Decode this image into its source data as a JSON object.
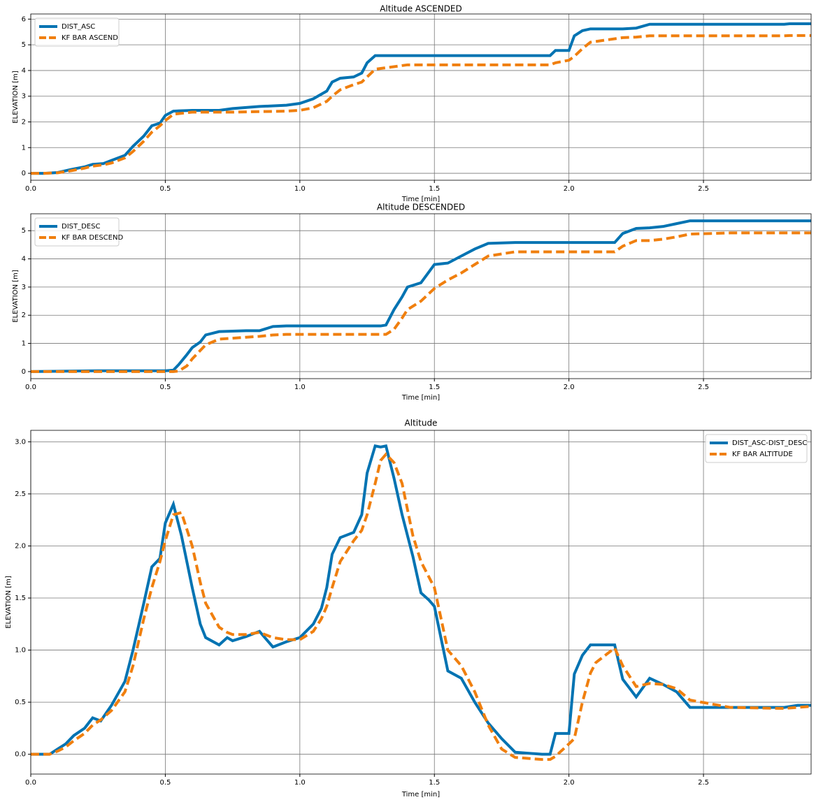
{
  "chart_data": [
    {
      "type": "line",
      "title": "Altitude ASCENDED",
      "x_label": "Time [min]",
      "y_label": "ELEVATION [m]",
      "x": [
        0,
        0.05,
        0.1,
        0.15,
        0.2,
        0.23,
        0.27,
        0.3,
        0.35,
        0.38,
        0.42,
        0.45,
        0.48,
        0.5,
        0.53,
        0.6,
        0.7,
        0.75,
        0.85,
        0.95,
        1.0,
        1.05,
        1.1,
        1.12,
        1.15,
        1.2,
        1.23,
        1.25,
        1.28,
        1.4,
        1.6,
        1.8,
        1.93,
        1.95,
        2.0,
        2.02,
        2.05,
        2.08,
        2.2,
        2.25,
        2.3,
        2.5,
        2.8,
        2.82,
        2.9
      ],
      "series": [
        {
          "name": "DIST_ASC",
          "color": "#0173b2",
          "linestyle": "solid",
          "values": [
            0,
            0,
            0.03,
            0.15,
            0.25,
            0.35,
            0.38,
            0.5,
            0.7,
            1.05,
            1.45,
            1.85,
            1.95,
            2.25,
            2.42,
            2.45,
            2.45,
            2.52,
            2.6,
            2.65,
            2.72,
            2.9,
            3.2,
            3.55,
            3.7,
            3.75,
            3.9,
            4.3,
            4.58,
            4.58,
            4.58,
            4.58,
            4.58,
            4.78,
            4.78,
            5.35,
            5.55,
            5.62,
            5.62,
            5.65,
            5.8,
            5.8,
            5.8,
            5.82,
            5.82
          ]
        },
        {
          "name": "KF BAR ASCEND",
          "color": "#f07f0e",
          "linestyle": "dashed",
          "values": [
            0,
            0,
            0.02,
            0.1,
            0.2,
            0.28,
            0.33,
            0.4,
            0.6,
            0.85,
            1.25,
            1.6,
            1.85,
            2.05,
            2.3,
            2.38,
            2.38,
            2.38,
            2.4,
            2.42,
            2.45,
            2.55,
            2.8,
            3.0,
            3.25,
            3.45,
            3.55,
            3.75,
            4.05,
            4.22,
            4.22,
            4.22,
            4.22,
            4.3,
            4.4,
            4.55,
            4.85,
            5.1,
            5.28,
            5.3,
            5.35,
            5.35,
            5.35,
            5.36,
            5.36
          ]
        }
      ],
      "xlim": [
        0,
        2.9
      ],
      "ylim": [
        -0.27,
        6.2
      ],
      "xticks": [
        {
          "value": 0,
          "label": "0.0"
        },
        0.5,
        {
          "value": 1,
          "label": "1.0"
        },
        1.5,
        {
          "value": 2,
          "label": "2.0"
        },
        2.5
      ],
      "yticks": [
        0,
        1,
        2,
        3,
        4,
        5,
        6
      ],
      "grid": true,
      "legend_loc": "upper-left"
    },
    {
      "type": "line",
      "title": "Altitude DESCENDED",
      "x_label": "Time [min]",
      "y_label": "ELEVATION [m]",
      "x": [
        0,
        0.25,
        0.5,
        0.53,
        0.55,
        0.58,
        0.6,
        0.63,
        0.65,
        0.7,
        0.8,
        0.85,
        0.9,
        0.95,
        1.2,
        1.3,
        1.32,
        1.35,
        1.38,
        1.4,
        1.45,
        1.5,
        1.55,
        1.6,
        1.65,
        1.7,
        1.8,
        2.0,
        2.17,
        2.2,
        2.25,
        2.3,
        2.35,
        2.4,
        2.45,
        2.6,
        2.9
      ],
      "series": [
        {
          "name": "DIST_DESC",
          "color": "#0173b2",
          "linestyle": "solid",
          "values": [
            0,
            0.03,
            0.03,
            0.05,
            0.25,
            0.6,
            0.85,
            1.05,
            1.3,
            1.42,
            1.45,
            1.45,
            1.6,
            1.62,
            1.62,
            1.62,
            1.65,
            2.2,
            2.65,
            3.0,
            3.15,
            3.8,
            3.85,
            4.1,
            4.35,
            4.55,
            4.58,
            4.58,
            4.58,
            4.9,
            5.08,
            5.1,
            5.15,
            5.25,
            5.35,
            5.35,
            5.35
          ]
        },
        {
          "name": "KF BAR DESCEND",
          "color": "#f07f0e",
          "linestyle": "dashed",
          "values": [
            0,
            0,
            0,
            0,
            0.02,
            0.2,
            0.45,
            0.75,
            0.95,
            1.15,
            1.22,
            1.25,
            1.3,
            1.32,
            1.32,
            1.32,
            1.32,
            1.5,
            1.9,
            2.2,
            2.5,
            2.95,
            3.25,
            3.5,
            3.8,
            4.1,
            4.25,
            4.25,
            4.25,
            4.45,
            4.65,
            4.65,
            4.7,
            4.78,
            4.88,
            4.92,
            4.92
          ]
        }
      ],
      "xlim": [
        0,
        2.9
      ],
      "ylim": [
        -0.25,
        5.6
      ],
      "xticks": [
        {
          "value": 0,
          "label": "0.0"
        },
        0.5,
        {
          "value": 1,
          "label": "1.0"
        },
        1.5,
        {
          "value": 2,
          "label": "2.0"
        },
        2.5
      ],
      "yticks": [
        0,
        1,
        2,
        3,
        4,
        5
      ],
      "grid": true,
      "legend_loc": "upper-left"
    },
    {
      "type": "line",
      "title": "Altitude",
      "x_label": "Time [min]",
      "y_label": "ELEVATION [m]",
      "x": [
        0,
        0.07,
        0.1,
        0.13,
        0.16,
        0.2,
        0.23,
        0.26,
        0.3,
        0.35,
        0.38,
        0.42,
        0.45,
        0.48,
        0.5,
        0.53,
        0.56,
        0.6,
        0.63,
        0.65,
        0.7,
        0.73,
        0.75,
        0.8,
        0.85,
        0.9,
        0.95,
        1.0,
        1.05,
        1.08,
        1.1,
        1.12,
        1.15,
        1.2,
        1.23,
        1.25,
        1.28,
        1.3,
        1.32,
        1.35,
        1.38,
        1.42,
        1.45,
        1.48,
        1.5,
        1.55,
        1.6,
        1.65,
        1.7,
        1.75,
        1.8,
        1.9,
        1.93,
        1.95,
        2.0,
        2.02,
        2.05,
        2.08,
        2.1,
        2.17,
        2.2,
        2.25,
        2.3,
        2.35,
        2.4,
        2.45,
        2.6,
        2.8,
        2.85,
        2.9
      ],
      "series": [
        {
          "name": "DIST_ASC-DIST_DESC",
          "color": "#0173b2",
          "linestyle": "solid",
          "values": [
            0,
            0,
            0.05,
            0.1,
            0.18,
            0.25,
            0.35,
            0.32,
            0.47,
            0.7,
            1.0,
            1.45,
            1.8,
            1.88,
            2.22,
            2.4,
            2.1,
            1.6,
            1.25,
            1.12,
            1.05,
            1.12,
            1.09,
            1.13,
            1.18,
            1.03,
            1.08,
            1.12,
            1.25,
            1.4,
            1.6,
            1.92,
            2.08,
            2.13,
            2.3,
            2.7,
            2.96,
            2.95,
            2.96,
            2.65,
            2.3,
            1.9,
            1.55,
            1.48,
            1.42,
            0.8,
            0.73,
            0.5,
            0.3,
            0.15,
            0.02,
            0,
            0,
            0.2,
            0.2,
            0.77,
            0.95,
            1.05,
            1.05,
            1.05,
            0.72,
            0.55,
            0.73,
            0.67,
            0.6,
            0.45,
            0.45,
            0.45,
            0.47,
            0.47
          ]
        },
        {
          "name": "KF BAR ALTITUDE",
          "color": "#f07f0e",
          "linestyle": "dashed",
          "values": [
            0,
            0,
            0.03,
            0.07,
            0.13,
            0.2,
            0.28,
            0.33,
            0.42,
            0.6,
            0.85,
            1.3,
            1.6,
            1.85,
            2.05,
            2.3,
            2.32,
            2.0,
            1.65,
            1.45,
            1.22,
            1.17,
            1.15,
            1.15,
            1.17,
            1.12,
            1.1,
            1.1,
            1.18,
            1.3,
            1.42,
            1.6,
            1.85,
            2.05,
            2.15,
            2.3,
            2.6,
            2.82,
            2.88,
            2.8,
            2.6,
            2.1,
            1.85,
            1.7,
            1.6,
            1.0,
            0.85,
            0.6,
            0.28,
            0.05,
            -0.03,
            -0.05,
            -0.05,
            -0.02,
            0.1,
            0.15,
            0.5,
            0.78,
            0.88,
            1.02,
            0.85,
            0.65,
            0.68,
            0.67,
            0.63,
            0.52,
            0.45,
            0.44,
            0.45,
            0.46
          ]
        }
      ],
      "xlim": [
        0,
        2.9
      ],
      "ylim": [
        -0.19,
        3.11
      ],
      "xticks": [
        {
          "value": 0,
          "label": "0.0"
        },
        0.5,
        {
          "value": 1,
          "label": "1.0"
        },
        1.5,
        {
          "value": 2,
          "label": "2.0"
        },
        2.5
      ],
      "yticks": [
        {
          "value": 0,
          "label": "0.0"
        },
        0.5,
        {
          "value": 1,
          "label": "1.0"
        },
        1.5,
        {
          "value": 2,
          "label": "2.0"
        },
        2.5,
        {
          "value": 3,
          "label": "3.0"
        }
      ],
      "grid": true,
      "legend_loc": "upper-right"
    }
  ]
}
